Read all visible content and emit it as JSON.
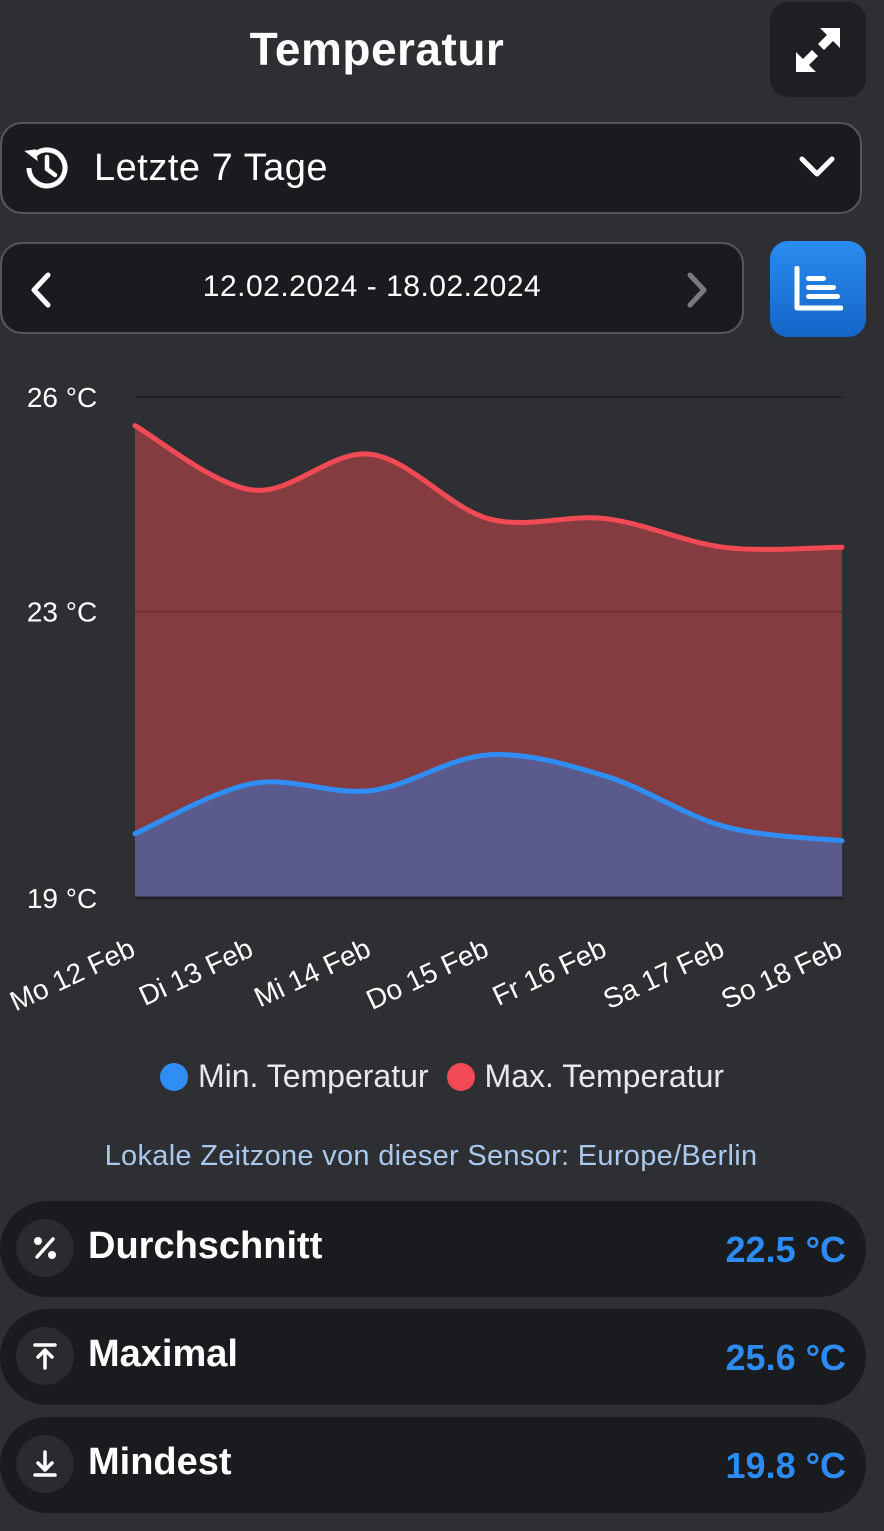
{
  "header": {
    "title": "Temperatur",
    "expand_icon": "expand-icon"
  },
  "range_select": {
    "label": "Letzte 7 Tage",
    "icon": "history-icon"
  },
  "date_nav": {
    "range": "12.02.2024 - 18.02.2024"
  },
  "colors": {
    "min": "#2f8ef5",
    "max": "#f24a55",
    "accent": "#2c8cf4"
  },
  "chart_data": {
    "type": "area",
    "categories": [
      "Mo 12 Feb",
      "Di 13 Feb",
      "Mi 14 Feb",
      "Do 15 Feb",
      "Fr 16 Feb",
      "Sa 17 Feb",
      "So 18 Feb"
    ],
    "series": [
      {
        "name": "Min. Temperatur",
        "values": [
          19.9,
          20.6,
          20.5,
          21.0,
          20.7,
          20.0,
          19.8
        ]
      },
      {
        "name": "Max. Temperatur",
        "values": [
          25.6,
          24.7,
          25.2,
          24.3,
          24.3,
          23.9,
          23.9
        ]
      }
    ],
    "y_ticks": [
      "26 °C",
      "23 °C",
      "19 °C"
    ],
    "ylim": [
      19,
      26
    ],
    "grid": true,
    "legend": "bottom"
  },
  "legend": {
    "min_label": "Min. Temperatur",
    "max_label": "Max. Temperatur"
  },
  "timezone_note": "Lokale Zeitzone von dieser Sensor: Europe/Berlin",
  "stats": [
    {
      "label": "Durchschnitt",
      "value": "22.5 °C",
      "icon": "percent-icon"
    },
    {
      "label": "Maximal",
      "value": "25.6 °C",
      "icon": "arrow-up-icon"
    },
    {
      "label": "Mindest",
      "value": "19.8 °C",
      "icon": "arrow-down-icon"
    }
  ]
}
